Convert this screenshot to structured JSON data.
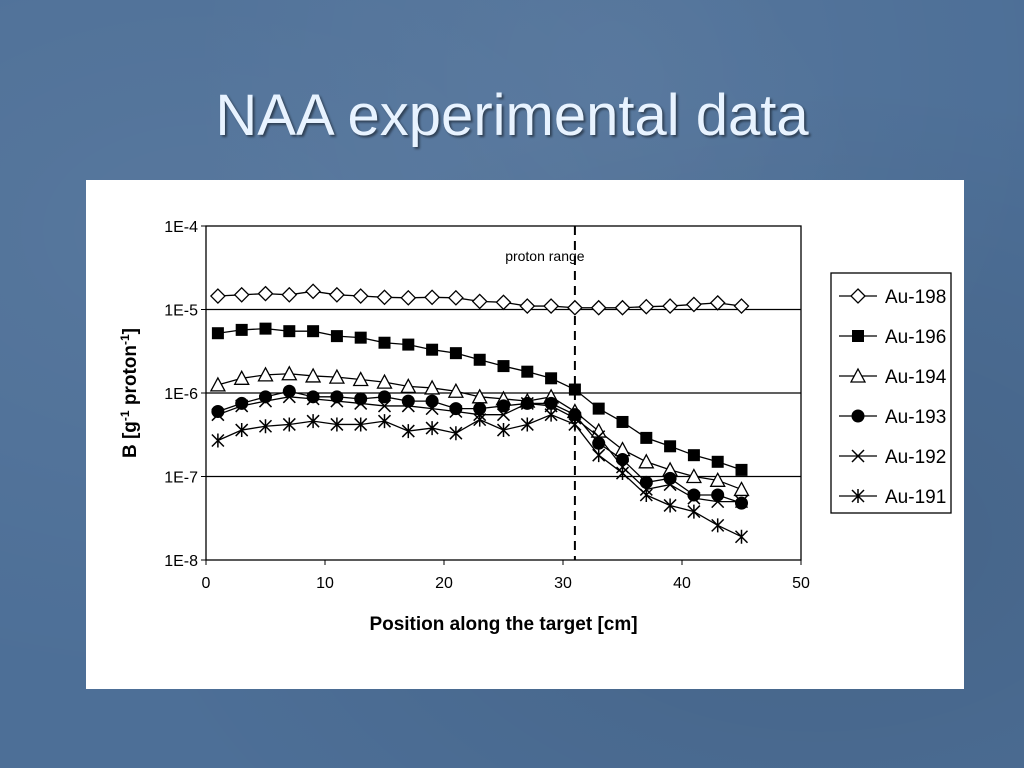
{
  "slide": {
    "title": "NAA experimental data"
  },
  "chart_data": {
    "type": "line",
    "xlabel": "Position along the target [cm]",
    "ylabel_parts": [
      "B [g",
      "-1",
      " proton",
      "-1",
      "]"
    ],
    "xlim": [
      0,
      50
    ],
    "ylim": [
      1e-08,
      0.0001
    ],
    "yscale": "log",
    "x_ticks": [
      "0",
      "10",
      "20",
      "30",
      "40",
      "50"
    ],
    "y_ticks": [
      "1E-8",
      "1E-7",
      "1E-6",
      "1E-5",
      "1E-4"
    ],
    "grid": "horizontal",
    "legend_position": "right",
    "annotation": {
      "text": "proton range",
      "x": 31
    },
    "x": [
      1,
      3,
      5,
      7,
      9,
      11,
      13,
      15,
      17,
      19,
      21,
      23,
      25,
      27,
      29,
      31,
      33,
      35,
      37,
      39,
      41,
      43,
      45
    ],
    "series": [
      {
        "name": "Au-198",
        "marker": "diamond-open",
        "values": [
          1.45e-05,
          1.5e-05,
          1.55e-05,
          1.5e-05,
          1.65e-05,
          1.5e-05,
          1.45e-05,
          1.4e-05,
          1.38e-05,
          1.4e-05,
          1.38e-05,
          1.25e-05,
          1.22e-05,
          1.1e-05,
          1.1e-05,
          1.05e-05,
          1.05e-05,
          1.05e-05,
          1.08e-05,
          1.1e-05,
          1.15e-05,
          1.2e-05,
          1.1e-05
        ]
      },
      {
        "name": "Au-196",
        "marker": "square-filled",
        "values": [
          5.2e-06,
          5.7e-06,
          5.9e-06,
          5.5e-06,
          5.5e-06,
          4.8e-06,
          4.6e-06,
          4e-06,
          3.8e-06,
          3.3e-06,
          3e-06,
          2.5e-06,
          2.1e-06,
          1.8e-06,
          1.5e-06,
          1.1e-06,
          6.5e-07,
          4.5e-07,
          2.9e-07,
          2.3e-07,
          1.8e-07,
          1.5e-07,
          1.2e-07
        ]
      },
      {
        "name": "Au-194",
        "marker": "triangle-open",
        "values": [
          1.25e-06,
          1.5e-06,
          1.65e-06,
          1.7e-06,
          1.6e-06,
          1.55e-06,
          1.45e-06,
          1.35e-06,
          1.2e-06,
          1.15e-06,
          1.05e-06,
          9e-07,
          8.5e-07,
          8e-07,
          9e-07,
          6e-07,
          3.5e-07,
          2.1e-07,
          1.5e-07,
          1.2e-07,
          1e-07,
          9e-08,
          7e-08
        ]
      },
      {
        "name": "Au-193",
        "marker": "circle-filled",
        "values": [
          6e-07,
          7.5e-07,
          9e-07,
          1.05e-06,
          9e-07,
          9e-07,
          8.5e-07,
          9e-07,
          8e-07,
          8e-07,
          6.5e-07,
          6.5e-07,
          7e-07,
          7.5e-07,
          7.5e-07,
          5.5e-07,
          2.5e-07,
          1.6e-07,
          8.5e-08,
          9.5e-08,
          6e-08,
          6e-08,
          4.8e-08
        ]
      },
      {
        "name": "Au-192",
        "marker": "x",
        "values": [
          5.5e-07,
          7e-07,
          8e-07,
          9e-07,
          8.5e-07,
          8e-07,
          7.5e-07,
          7e-07,
          7e-07,
          6.5e-07,
          6e-07,
          5.5e-07,
          5.5e-07,
          7.5e-07,
          7e-07,
          5e-07,
          3e-07,
          1.3e-07,
          7e-08,
          8e-08,
          5.5e-08,
          5e-08,
          5e-08
        ]
      },
      {
        "name": "Au-191",
        "marker": "star",
        "values": [
          2.7e-07,
          3.6e-07,
          4e-07,
          4.2e-07,
          4.6e-07,
          4.2e-07,
          4.2e-07,
          4.6e-07,
          3.5e-07,
          3.8e-07,
          3.3e-07,
          4.8e-07,
          3.6e-07,
          4.2e-07,
          5.5e-07,
          4.2e-07,
          1.8e-07,
          1.1e-07,
          6e-08,
          4.5e-08,
          3.8e-08,
          2.6e-08,
          1.9e-08
        ]
      }
    ]
  }
}
